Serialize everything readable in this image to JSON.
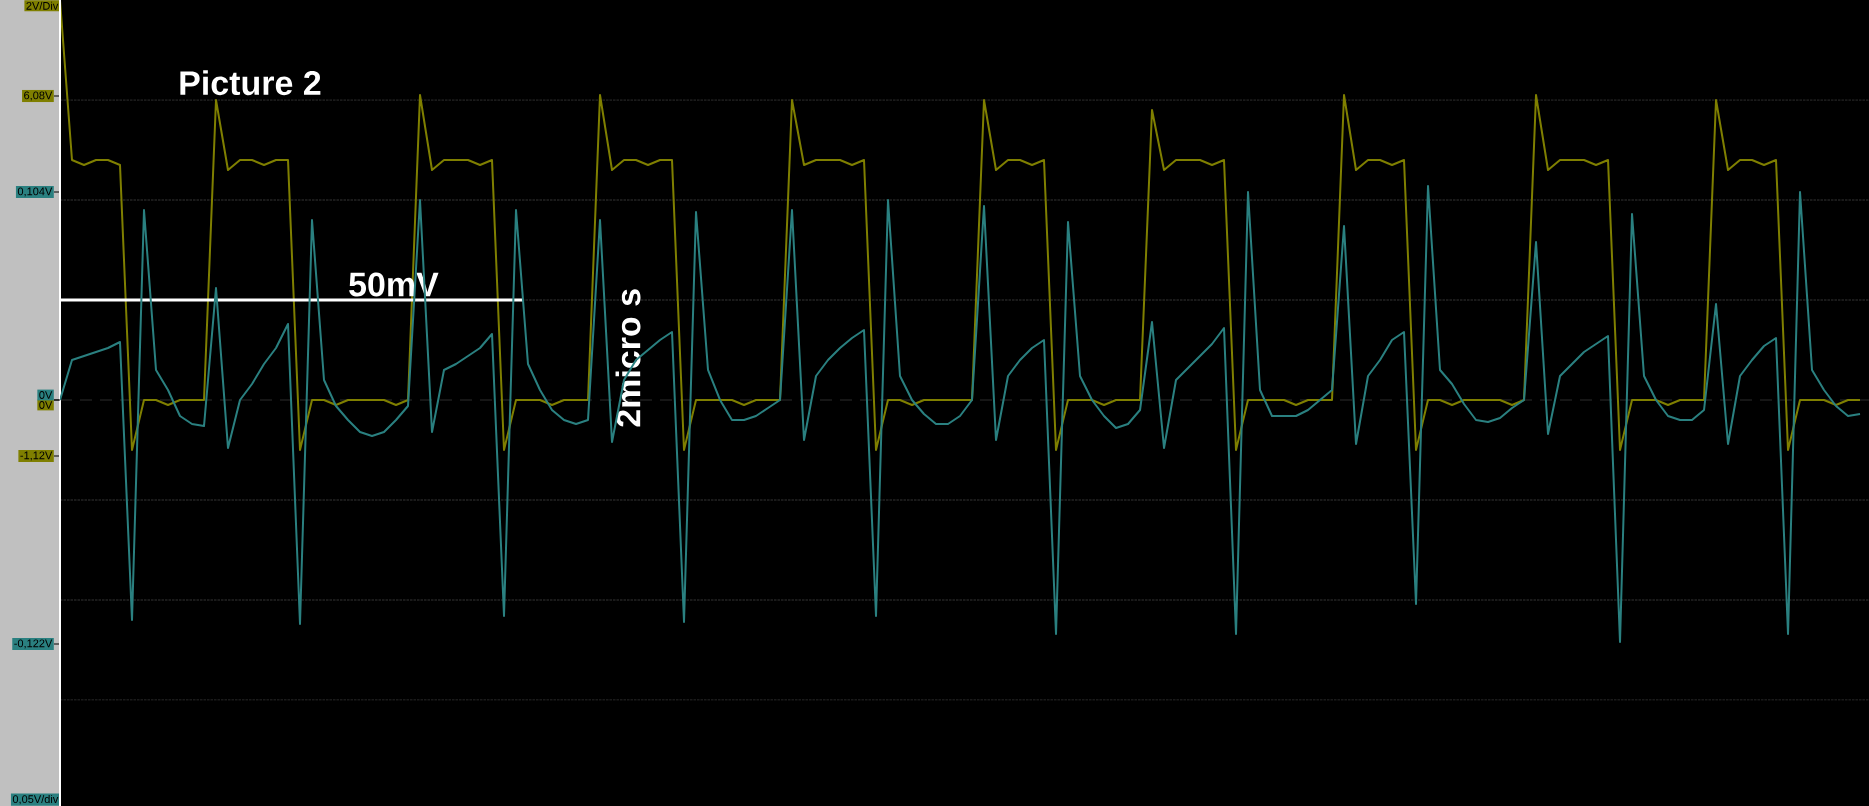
{
  "chart_data": {
    "type": "line",
    "title": "Picture 2",
    "ylabel": "2V/Div",
    "annotations": [
      "2micro s",
      "0,05V/div"
    ],
    "categories": [
      null,
      null,
      null,
      null,
      null,
      null,
      null,
      null,
      null,
      null,
      null,
      null,
      null,
      null,
      null,
      null,
      null,
      null,
      null,
      null,
      null,
      null,
      null,
      null,
      null,
      null,
      null,
      null,
      null,
      null,
      null,
      null,
      null,
      null,
      null,
      null,
      null,
      null,
      null,
      null,
      null,
      null,
      null,
      null,
      null,
      null,
      null,
      null,
      null,
      null,
      null,
      null,
      null,
      null,
      null,
      null,
      null,
      null,
      null,
      null,
      null,
      null,
      null,
      null,
      null,
      null,
      null,
      null,
      null,
      null,
      null,
      null,
      null,
      null,
      null,
      null,
      null,
      null,
      null,
      null,
      null,
      null,
      null,
      null,
      null,
      null,
      null,
      null,
      null,
      null,
      null,
      null,
      null,
      null,
      null,
      null,
      null,
      null,
      null,
      null,
      null,
      null,
      null,
      null,
      null,
      null,
      null,
      null,
      null,
      null,
      null,
      null,
      null,
      null,
      null,
      null,
      null,
      null,
      null,
      null,
      null,
      null,
      null,
      null,
      null,
      null,
      null,
      null,
      null,
      null,
      null,
      null,
      null,
      null,
      null,
      null,
      null,
      null,
      null,
      null,
      null,
      null,
      null,
      null,
      null,
      null,
      null,
      null,
      null,
      null,
      null
    ],
    "series": [
      {
        "color": "#7f7f00",
        "values": [
          8,
          4.8,
          4.7,
          4.8,
          4.8,
          4.7,
          -1.0,
          0,
          0,
          -0.1,
          0,
          0,
          0,
          6.0,
          4.6,
          4.8,
          4.8,
          4.7,
          4.8,
          4.8,
          -1.0,
          0,
          0,
          -0.1,
          0,
          0,
          0,
          0,
          -0.1,
          0,
          6.1,
          4.6,
          4.8,
          4.8,
          4.8,
          4.7,
          4.8,
          -1.0,
          0,
          0,
          0,
          -0.1,
          0,
          0,
          0,
          6.1,
          4.6,
          4.8,
          4.8,
          4.7,
          4.8,
          4.8,
          -1.0,
          0,
          0,
          0,
          0,
          -0.1,
          0,
          0,
          0,
          6.0,
          4.7,
          4.8,
          4.8,
          4.8,
          4.7,
          4.8,
          -1.0,
          0,
          0,
          -0.1,
          0,
          0,
          0,
          0,
          0,
          6.0,
          4.6,
          4.8,
          4.8,
          4.7,
          4.8,
          -1.0,
          0,
          0,
          0,
          -0.1,
          0,
          0,
          0,
          5.8,
          4.6,
          4.8,
          4.8,
          4.8,
          4.7,
          4.8,
          -1.0,
          0,
          0,
          0,
          0,
          -0.1,
          0,
          0,
          0,
          6.1,
          4.6,
          4.8,
          4.8,
          4.7,
          4.8,
          -1.0,
          0,
          0,
          -0.1,
          0,
          0,
          0,
          0,
          -0.1,
          0,
          6.1,
          4.6,
          4.8,
          4.8,
          4.8,
          4.7,
          4.8,
          -1.0,
          0,
          0,
          0,
          -0.1,
          0,
          0,
          0,
          6.0,
          4.6,
          4.8,
          4.8,
          4.7,
          4.8,
          -1.0,
          0,
          0,
          0,
          -0.1,
          0,
          0
        ]
      },
      {
        "color": "#2a8080",
        "axis": "y2",
        "values": [
          0,
          0.02,
          0.022,
          0.024,
          0.026,
          0.029,
          -0.11,
          0.095,
          0.015,
          0.005,
          -0.008,
          -0.012,
          -0.013,
          0.056,
          -0.024,
          0,
          0.008,
          0.018,
          0.026,
          0.038,
          -0.112,
          0.09,
          0.01,
          -0.003,
          -0.01,
          -0.016,
          -0.018,
          -0.016,
          -0.01,
          -0.003,
          0.1,
          -0.016,
          0.015,
          0.018,
          0.022,
          0.026,
          0.033,
          -0.108,
          0.095,
          0.018,
          0.005,
          -0.005,
          -0.01,
          -0.012,
          -0.01,
          0.09,
          -0.021,
          0.01,
          0.02,
          0.025,
          0.03,
          0.034,
          -0.111,
          0.094,
          0.015,
          0,
          -0.01,
          -0.01,
          -0.008,
          -0.004,
          0,
          0.095,
          -0.02,
          0.012,
          0.02,
          0.026,
          0.031,
          0.035,
          -0.108,
          0.1,
          0.012,
          0,
          -0.007,
          -0.012,
          -0.012,
          -0.008,
          0,
          0.097,
          -0.02,
          0.012,
          0.02,
          0.026,
          0.03,
          -0.117,
          0.089,
          0.012,
          0,
          -0.008,
          -0.014,
          -0.012,
          -0.005,
          0.039,
          -0.024,
          0.01,
          0.016,
          0.022,
          0.028,
          0.036,
          -0.117,
          0.104,
          0.005,
          -0.008,
          -0.008,
          -0.008,
          -0.005,
          0,
          0.005,
          0.087,
          -0.022,
          0.012,
          0.02,
          0.03,
          0.034,
          -0.102,
          0.107,
          0.015,
          0.008,
          -0.002,
          -0.01,
          -0.011,
          -0.009,
          -0.004,
          0,
          0.079,
          -0.017,
          0.012,
          0.018,
          0.024,
          0.028,
          0.032,
          -0.121,
          0.093,
          0.012,
          0,
          -0.008,
          -0.01,
          -0.01,
          -0.005,
          0.048,
          -0.022,
          0.012,
          0.02,
          0.027,
          0.031,
          -0.117,
          0.104,
          0.015,
          0.005,
          -0.003,
          -0.008,
          -0.007
        ]
      }
    ],
    "ylim": [
      -8.12,
      8
    ],
    "yticks": [
      {
        "value": 6.08,
        "label": "6,08V"
      },
      {
        "value": 0,
        "label": "0V"
      },
      {
        "value": -1.12,
        "label": "-1,12V"
      },
      {
        "value": 6,
        "label": null
      },
      {
        "value": 4,
        "label": null
      },
      {
        "value": 2,
        "label": null
      },
      {
        "value": -2,
        "label": null
      },
      {
        "value": -4,
        "label": null
      },
      {
        "value": -6,
        "label": null
      }
    ],
    "y2lim": [
      -0.203,
      0.2
    ],
    "y2ticks": [
      {
        "value": 0.104,
        "label": "0,104V"
      },
      {
        "value": 0,
        "label": "0V"
      },
      {
        "value": -0.122,
        "label": "-0,122V"
      }
    ],
    "ref_lines": [
      {
        "axis": "y",
        "value": 0,
        "line_style": "dashed",
        "color": "#5a5a5a"
      },
      {
        "axis": "y2",
        "value": 0.05,
        "label": "50mV",
        "color": "#ffffff"
      }
    ],
    "grid": "y"
  }
}
